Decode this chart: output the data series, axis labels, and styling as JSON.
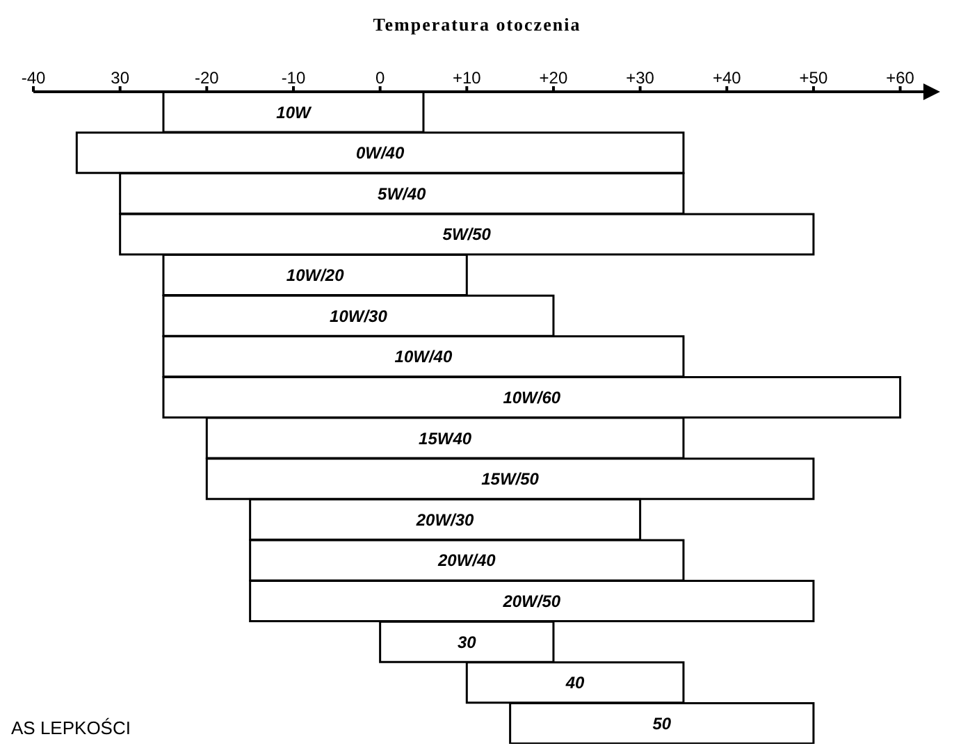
{
  "chart_data": {
    "type": "bar",
    "orientation": "horizontal",
    "xlabel": "Temperatura otoczenia",
    "categories": [
      "10W",
      "0W/40",
      "5W/40",
      "5W/50",
      "10W/20",
      "10W/30",
      "10W/40",
      "10W/60",
      "15W40",
      "15W/50",
      "20W/30",
      "20W/40",
      "20W/50",
      "30",
      "40",
      "50"
    ],
    "base": [
      -25,
      -35,
      -30,
      -30,
      -25,
      -25,
      -25,
      -25,
      -20,
      -20,
      -15,
      -15,
      -15,
      0,
      10,
      15
    ],
    "values": [
      30,
      70,
      65,
      80,
      35,
      45,
      60,
      85,
      55,
      70,
      45,
      50,
      65,
      20,
      25,
      35
    ],
    "color": "#ffffff",
    "xlim": [
      -40,
      63
    ],
    "xticks": [
      -40,
      {
        "value": -30,
        "label": "30"
      },
      -20,
      {
        "value": -10,
        "label": "-10"
      },
      0,
      {
        "value": 10,
        "label": "+10"
      },
      {
        "value": 20,
        "label": "+20"
      },
      {
        "value": 30,
        "label": "+30"
      },
      {
        "value": 40,
        "label": "+40"
      },
      {
        "value": 50,
        "label": "+50"
      },
      {
        "value": 60,
        "label": "+60"
      }
    ],
    "annotations": [
      "AS LEPKOŚCI"
    ],
    "grid": false,
    "legend": false
  }
}
